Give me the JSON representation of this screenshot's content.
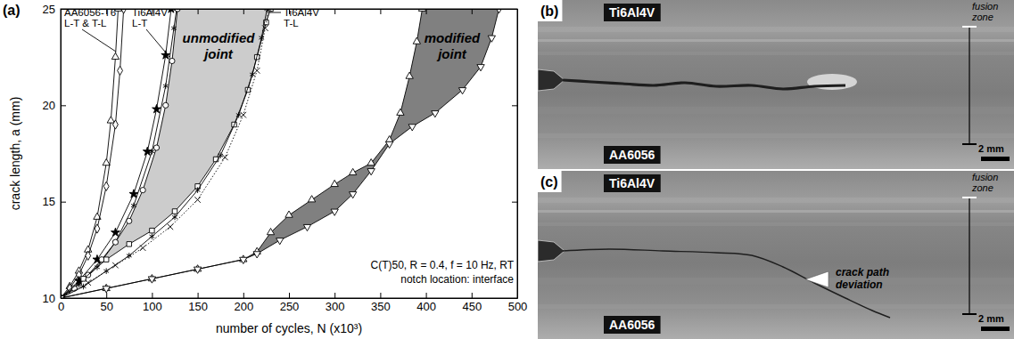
{
  "chart_data": {
    "type": "line",
    "title": "(a)",
    "x_label": "number of cycles, N (x10³)",
    "y_label": "crack length, a (mm)",
    "xlim": [
      0,
      500
    ],
    "xticks": [
      0,
      50,
      100,
      150,
      200,
      250,
      300,
      350,
      400,
      450,
      500
    ],
    "ylim": [
      10,
      25
    ],
    "yticks": [
      10,
      15,
      20,
      25
    ],
    "series": [
      {
        "type": "band",
        "color": "#cccccc",
        "x": [
          0,
          15,
          30,
          45,
          60,
          75,
          90,
          105,
          115,
          122,
          128,
          230,
          225,
          215,
          205,
          190,
          170,
          150,
          125,
          100,
          75,
          50,
          25,
          0
        ],
        "values": [
          10,
          10.5,
          11.2,
          12,
          12.9,
          14,
          15.6,
          17.8,
          20,
          22.3,
          25,
          25,
          24.3,
          22.5,
          20.8,
          19,
          17.2,
          15.8,
          14.5,
          13.5,
          12.8,
          12,
          11,
          10
        ]
      },
      {
        "type": "band",
        "color": "#808080",
        "x": [
          0,
          50,
          100,
          150,
          200,
          215,
          230,
          250,
          275,
          300,
          320,
          340,
          360,
          372,
          382,
          390,
          396,
          480,
          472,
          460,
          440,
          410,
          385,
          360,
          340,
          320,
          300,
          270,
          240,
          215,
          200,
          150,
          100,
          50,
          0
        ],
        "values": [
          10,
          10.5,
          11,
          11.5,
          12,
          12.4,
          13.4,
          14.3,
          15.1,
          15.9,
          16.5,
          17,
          18.2,
          19.6,
          21.5,
          23.3,
          25,
          25,
          23.5,
          22,
          20.8,
          19.6,
          18.9,
          18,
          16.6,
          15.4,
          14.5,
          13.7,
          13,
          12.3,
          12,
          11.5,
          11,
          10.5,
          10
        ]
      },
      {
        "color": "#000000",
        "marker": "triangle",
        "line_style": "solid",
        "x": [
          0,
          10,
          20,
          30,
          40,
          50,
          55,
          60,
          63
        ],
        "values": [
          10,
          10.6,
          11.4,
          12.5,
          14.2,
          17,
          19.2,
          22.5,
          25
        ]
      },
      {
        "color": "#000000",
        "marker": "diamond",
        "line_style": "solid",
        "x": [
          0,
          10,
          20,
          30,
          40,
          50,
          60,
          65,
          69
        ],
        "values": [
          10,
          10.5,
          11.2,
          12.2,
          13.6,
          15.8,
          19,
          21.8,
          25
        ]
      },
      {
        "color": "#000000",
        "marker": "star",
        "line_style": "solid",
        "x": [
          0,
          20,
          40,
          60,
          80,
          95,
          105,
          115,
          121
        ],
        "values": [
          10,
          10.9,
          12,
          13.4,
          15.4,
          17.6,
          19.8,
          22.6,
          25
        ]
      },
      {
        "color": "#000000",
        "marker": "asterisk",
        "line_style": "solid",
        "x": [
          0,
          20,
          40,
          60,
          80,
          100,
          115,
          124,
          127
        ],
        "values": [
          10,
          10.7,
          11.6,
          12.9,
          14.8,
          17.6,
          21,
          24,
          25
        ]
      },
      {
        "color": "#000000",
        "marker": "circle",
        "line_style": "solid",
        "x": [
          0,
          15,
          30,
          45,
          60,
          75,
          90,
          105,
          115,
          122,
          128
        ],
        "values": [
          10,
          10.5,
          11.2,
          12,
          12.9,
          14,
          15.6,
          17.8,
          20,
          22.3,
          25
        ]
      },
      {
        "color": "#000000",
        "marker": "square",
        "line_style": "solid",
        "x": [
          0,
          25,
          50,
          75,
          100,
          125,
          150,
          170,
          190,
          205,
          215,
          225,
          230
        ],
        "values": [
          10,
          11,
          12,
          12.8,
          13.5,
          14.5,
          15.8,
          17.2,
          19,
          20.8,
          22.5,
          24.3,
          25
        ]
      },
      {
        "color": "#000000",
        "marker": "asterisk",
        "line_style": "solid",
        "x": [
          0,
          25,
          50,
          75,
          100,
          125,
          150,
          175,
          195,
          210,
          220,
          226
        ],
        "values": [
          10,
          10.6,
          11.4,
          12.2,
          13.2,
          14.2,
          15.6,
          17.4,
          19.5,
          21.6,
          23.5,
          25
        ]
      },
      {
        "color": "#000000",
        "marker": "x",
        "line_style": "dotted",
        "x": [
          0,
          30,
          60,
          90,
          120,
          150,
          180,
          200,
          215,
          224,
          228
        ],
        "values": [
          10,
          10.8,
          11.7,
          12.6,
          13.7,
          15.1,
          17.3,
          19.5,
          21.8,
          24,
          25
        ]
      },
      {
        "color": "#000000",
        "marker": "triangle",
        "line_style": "solid",
        "x": [
          0,
          50,
          100,
          150,
          200,
          215,
          230,
          250,
          275,
          300,
          320,
          340,
          360,
          372,
          382,
          390,
          396
        ],
        "values": [
          10,
          10.5,
          11,
          11.5,
          12,
          12.4,
          13.4,
          14.3,
          15.1,
          15.9,
          16.5,
          17,
          18.2,
          19.6,
          21.5,
          23.3,
          25
        ]
      },
      {
        "color": "#000000",
        "marker": "triangle-down",
        "line_style": "solid",
        "x": [
          0,
          50,
          100,
          150,
          200,
          215,
          240,
          270,
          300,
          320,
          340,
          360,
          385,
          410,
          440,
          460,
          472,
          480
        ],
        "values": [
          10,
          10.5,
          11,
          11.5,
          12,
          12.3,
          13,
          13.7,
          14.5,
          15.4,
          16.6,
          18,
          18.9,
          19.6,
          20.8,
          22,
          23.5,
          25
        ]
      }
    ],
    "annotations": [
      {
        "lines": [
          "AA6056-T6",
          "L-T & T-L"
        ]
      },
      {
        "lines": [
          "Ti6Al4V",
          "L-T"
        ]
      },
      {
        "lines": [
          "unmodified",
          "joint"
        ]
      },
      {
        "lines": [
          "Ti6Al4V",
          "T-L"
        ]
      },
      {
        "lines": [
          "modified",
          "joint"
        ]
      },
      {
        "lines": [
          "C(T)50, R = 0.4, f = 10 Hz, RT",
          "notch location: interface"
        ]
      }
    ]
  },
  "panels": [
    {
      "label": "(b)",
      "materials": [
        "Ti6Al4V",
        "AA6056"
      ],
      "zone": [
        "fusion",
        "zone"
      ],
      "scale_bar": "2 mm"
    },
    {
      "label": "(c)",
      "materials": [
        "Ti6Al4V",
        "AA6056"
      ],
      "zone": [
        "fusion",
        "zone"
      ],
      "scale_bar": "2 mm",
      "annotation": [
        "crack path",
        "deviation"
      ]
    }
  ]
}
